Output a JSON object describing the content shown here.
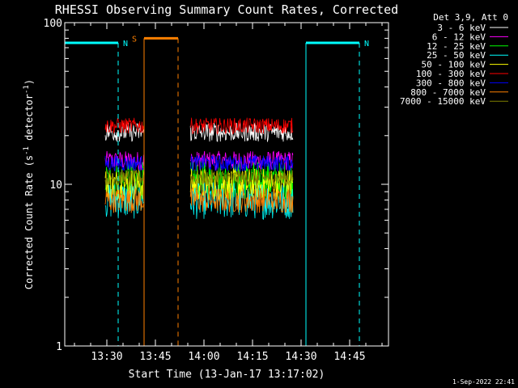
{
  "chart_data": {
    "type": "line",
    "title": "RHESSI Observing Summary Count Rates, Corrected",
    "xlabel": "Start Time (13-Jan-17 13:17:02)",
    "ylabel_main": "Corrected Count Rate (s",
    "ylabel_sup1": "-1",
    "ylabel_mid": " detector",
    "ylabel_sup2": "-1",
    "ylabel_end": ")",
    "yscale": "log",
    "ylim": [
      1,
      100
    ],
    "xlim_minutes": [
      797,
      897
    ],
    "x_ticks": [
      {
        "label": "13:30",
        "minute": 810
      },
      {
        "label": "13:45",
        "minute": 825
      },
      {
        "label": "14:00",
        "minute": 840
      },
      {
        "label": "14:15",
        "minute": 855
      },
      {
        "label": "14:30",
        "minute": 870
      },
      {
        "label": "14:45",
        "minute": 885
      }
    ],
    "y_ticks": [
      {
        "label": "1",
        "value": 1
      },
      {
        "label": "10",
        "value": 10
      },
      {
        "label": "100",
        "value": 100
      }
    ],
    "legend_header": "Det 3,9, Att 0",
    "legend_placement": "right, outside plot",
    "series": [
      {
        "name": "3 - 6 keV",
        "color": "#ffffff",
        "level": 21,
        "noise": 0.06
      },
      {
        "name": "6 - 12 keV",
        "color": "#ff00ff",
        "level": 14,
        "noise": 0.06
      },
      {
        "name": "12 - 25 keV",
        "color": "#00ff00",
        "level": 10.5,
        "noise": 0.12
      },
      {
        "name": "25 - 50 keV",
        "color": "#00ffff",
        "level": 8,
        "noise": 0.12
      },
      {
        "name": "50 - 100 keV",
        "color": "#ffff00",
        "level": 10,
        "noise": 0.1
      },
      {
        "name": "100 - 300 keV",
        "color": "#ff0000",
        "level": 23,
        "noise": 0.05
      },
      {
        "name": "300 - 800 keV",
        "color": "#0000ff",
        "level": 13.5,
        "noise": 0.05
      },
      {
        "name": "800 - 7000 keV",
        "color": "#ff8000",
        "level": 8,
        "noise": 0.08
      },
      {
        "name": "7000 - 15000 keV",
        "color": "#808000",
        "level": 11,
        "noise": 0.05
      }
    ],
    "data_segments_minutes": [
      [
        809.5,
        821.5
      ],
      [
        835.8,
        867.5
      ]
    ],
    "annotations": [
      {
        "label": "N",
        "color": "#00ffff",
        "start_minute": 797,
        "end_minute": 813.5,
        "value": 75
      },
      {
        "label": "N",
        "color": "#00ffff",
        "start_minute": 871.5,
        "end_minute": 888,
        "value": 75
      },
      {
        "label": "S",
        "color": "#ff8000",
        "start_minute": 821.5,
        "end_minute": 832,
        "value": 80
      }
    ],
    "footer": "1-Sep-2022 22:41"
  }
}
